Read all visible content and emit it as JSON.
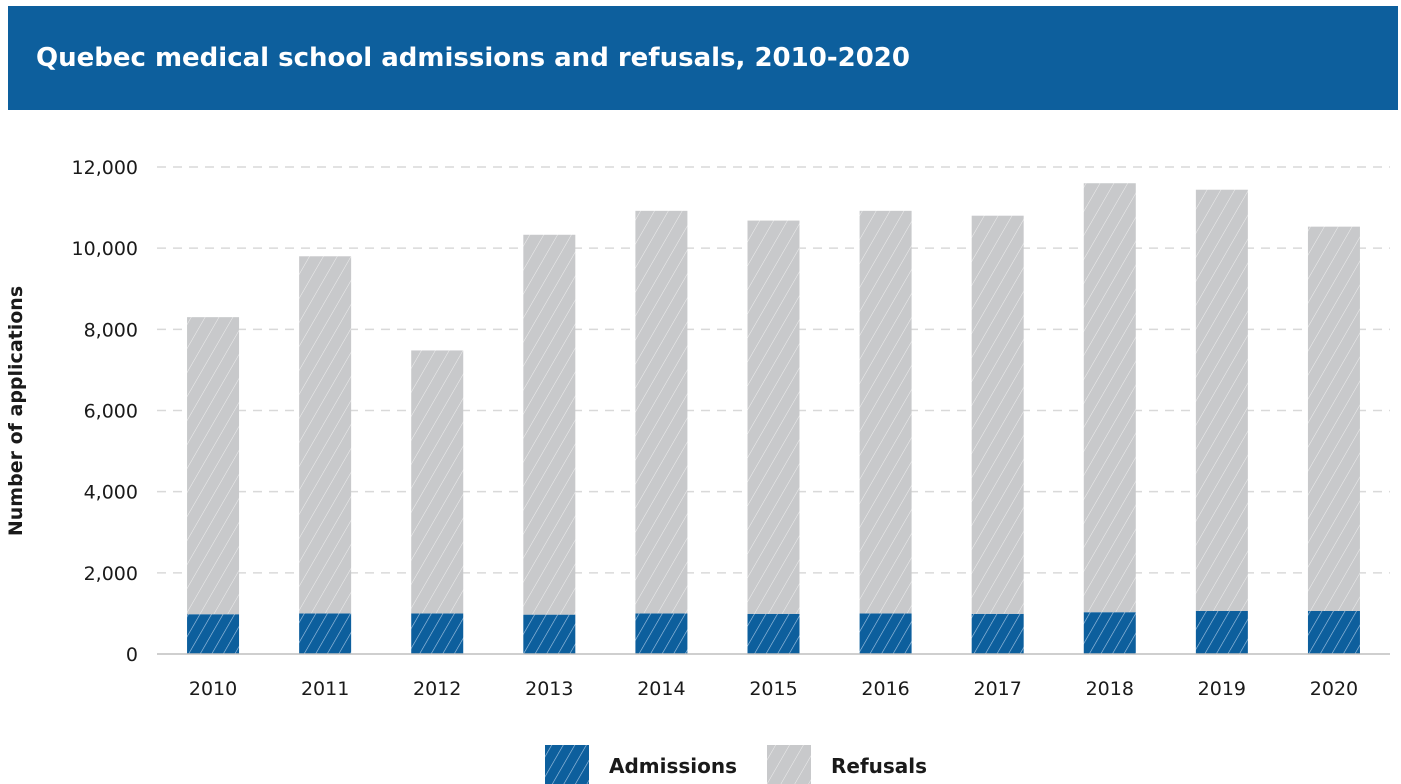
{
  "header": {
    "title": "Quebec medical school admissions and refusals, 2010-2020"
  },
  "colors": {
    "header_bg": "#0d5f9d",
    "admissions": "#0d5f9d",
    "refusals": "#c8c9cb",
    "grid": "#d9d9d9"
  },
  "chart_data": {
    "type": "bar",
    "stacked": true,
    "title": "",
    "xlabel": "",
    "ylabel": "Number of applications",
    "ylim": [
      0,
      12000
    ],
    "yticks": [
      "0",
      "2,000",
      "4,000",
      "6,000",
      "8,000",
      "10,000",
      "12,000"
    ],
    "ytick_values": [
      0,
      2000,
      4000,
      6000,
      8000,
      10000,
      12000
    ],
    "grid": "horizontal dashed",
    "legend_position": "bottom-center",
    "categories": [
      "2010",
      "2011",
      "2012",
      "2013",
      "2014",
      "2015",
      "2016",
      "2017",
      "2018",
      "2019",
      "2020"
    ],
    "series": [
      {
        "name": "Admissions",
        "values": [
          980,
          1000,
          1000,
          970,
          1000,
          990,
          1000,
          990,
          1030,
          1060,
          1060
        ]
      },
      {
        "name": "Refusals",
        "values": [
          7320,
          8800,
          6480,
          9360,
          9920,
          9690,
          9920,
          9810,
          10570,
          10380,
          9470
        ]
      }
    ]
  }
}
